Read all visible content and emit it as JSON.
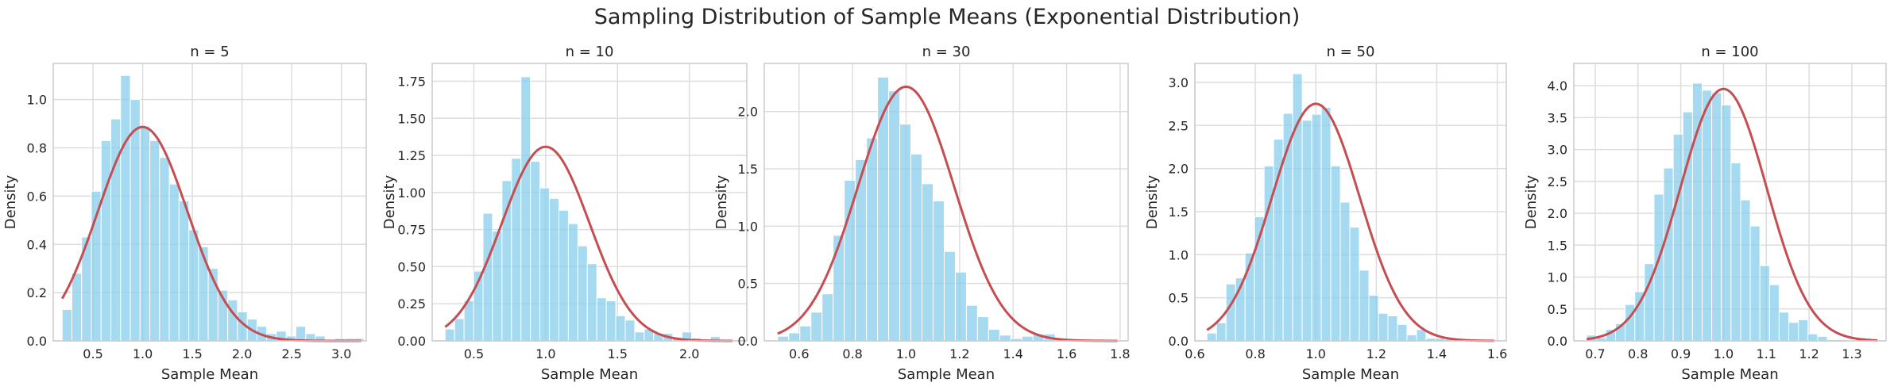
{
  "suptitle": "Sampling Distribution of Sample Means (Exponential Distribution)",
  "colors": {
    "bar": "#87CEEB",
    "curve": "#c44e52",
    "grid": "#dddddd",
    "spine": "#cccccc"
  },
  "chart_data": [
    {
      "type": "bar",
      "title": "n = 5",
      "xlabel": "Sample Mean",
      "ylabel": "Density",
      "xlim": [
        0.1,
        3.25
      ],
      "ylim": [
        0,
        1.15
      ],
      "xticks": [
        0.5,
        1.0,
        1.5,
        2.0,
        2.5,
        3.0
      ],
      "xtick_labels": [
        "0.5",
        "1.0",
        "1.5",
        "2.0",
        "2.5",
        "3.0"
      ],
      "yticks": [
        0,
        0.2,
        0.4,
        0.6,
        0.8,
        1.0
      ],
      "ytick_labels": [
        "0.0",
        "0.2",
        "0.4",
        "0.6",
        "0.8",
        "1.0"
      ],
      "bins_start": 0.19,
      "bin_width": 0.098,
      "values": [
        0.13,
        0.28,
        0.43,
        0.62,
        0.83,
        0.92,
        1.1,
        1.0,
        0.89,
        0.83,
        0.76,
        0.65,
        0.58,
        0.46,
        0.39,
        0.3,
        0.21,
        0.17,
        0.12,
        0.09,
        0.06,
        0.03,
        0.04,
        0.02,
        0.06,
        0.03,
        0.02,
        0.0,
        0.01,
        0.01,
        0.01
      ],
      "curve": {
        "mean": 1.0,
        "std": 0.45,
        "x_range": [
          0.19,
          3.2
        ]
      }
    },
    {
      "type": "bar",
      "title": "n = 10",
      "xlabel": "Sample Mean",
      "ylabel": "Density",
      "xlim": [
        0.21,
        2.4
      ],
      "ylim": [
        0,
        1.87
      ],
      "xticks": [
        0.5,
        1.0,
        1.5,
        2.0
      ],
      "xtick_labels": [
        "0.5",
        "1.0",
        "1.5",
        "2.0"
      ],
      "yticks": [
        0,
        0.25,
        0.5,
        0.75,
        1.0,
        1.25,
        1.5,
        1.75
      ],
      "ytick_labels": [
        "0.00",
        "0.25",
        "0.50",
        "0.75",
        "1.00",
        "1.25",
        "1.50",
        "1.75"
      ],
      "bins_start": 0.3,
      "bin_width": 0.066,
      "values": [
        0.08,
        0.15,
        0.27,
        0.47,
        0.86,
        0.74,
        1.08,
        1.23,
        1.78,
        1.21,
        1.03,
        0.96,
        0.88,
        0.79,
        0.64,
        0.52,
        0.29,
        0.27,
        0.17,
        0.14,
        0.06,
        0.08,
        0.05,
        0.05,
        0.02,
        0.06,
        0.02,
        0.0,
        0.03
      ],
      "curve": {
        "mean": 1.0,
        "std": 0.305,
        "x_range": [
          0.3,
          2.3
        ]
      }
    },
    {
      "type": "bar",
      "title": "n = 30",
      "xlabel": "Sample Mean",
      "ylabel": "Density",
      "xlim": [
        0.47,
        1.83
      ],
      "ylim": [
        0,
        2.42
      ],
      "xticks": [
        0.6,
        0.8,
        1.0,
        1.2,
        1.4,
        1.6,
        1.8
      ],
      "xtick_labels": [
        "0.6",
        "0.8",
        "1.0",
        "1.2",
        "1.4",
        "1.6",
        "1.8"
      ],
      "yticks": [
        0,
        0.5,
        1.0,
        1.5,
        2.0
      ],
      "ytick_labels": [
        "0.0",
        "0.5",
        "1.0",
        "1.5",
        "2.0"
      ],
      "bins_start": 0.52,
      "bin_width": 0.0415,
      "values": [
        0.04,
        0.07,
        0.13,
        0.25,
        0.41,
        0.92,
        1.4,
        1.58,
        1.77,
        2.3,
        2.18,
        1.89,
        1.63,
        1.37,
        1.22,
        0.78,
        0.6,
        0.31,
        0.21,
        0.1,
        0.05,
        0.02,
        0.04,
        0.06,
        0.06,
        0.01,
        0.01,
        0.01,
        0.01,
        0.0,
        0.01
      ],
      "curve": {
        "mean": 1.0,
        "std": 0.18,
        "x_range": [
          0.52,
          1.79
        ]
      }
    },
    {
      "type": "bar",
      "title": "n = 50",
      "xlabel": "Sample Mean",
      "ylabel": "Density",
      "xlim": [
        0.6,
        1.63
      ],
      "ylim": [
        0,
        3.22
      ],
      "xticks": [
        0.6,
        0.8,
        1.0,
        1.2,
        1.4,
        1.6
      ],
      "xtick_labels": [
        "0.6",
        "0.8",
        "1.0",
        "1.2",
        "1.4",
        "1.6"
      ],
      "yticks": [
        0,
        0.5,
        1.0,
        1.5,
        2.0,
        2.5,
        3.0
      ],
      "ytick_labels": [
        "0.0",
        "0.5",
        "1.0",
        "1.5",
        "2.0",
        "2.5",
        "3.0"
      ],
      "bins_start": 0.64,
      "bin_width": 0.0315,
      "values": [
        0.09,
        0.21,
        0.66,
        0.73,
        1.02,
        1.44,
        2.03,
        2.34,
        2.64,
        3.1,
        2.56,
        2.63,
        2.71,
        2.03,
        1.61,
        1.32,
        0.82,
        0.53,
        0.32,
        0.29,
        0.19,
        0.07,
        0.13,
        0.03,
        0.03,
        0.02,
        0.0,
        0.0,
        0.0,
        0.01
      ],
      "curve": {
        "mean": 1.0,
        "std": 0.145,
        "x_range": [
          0.64,
          1.59
        ]
      }
    },
    {
      "type": "bar",
      "title": "n = 100",
      "xlabel": "Sample Mean",
      "ylabel": "Density",
      "xlim": [
        0.65,
        1.38
      ],
      "ylim": [
        0,
        4.35
      ],
      "xticks": [
        0.7,
        0.8,
        0.9,
        1.0,
        1.1,
        1.2,
        1.3
      ],
      "xtick_labels": [
        "0.7",
        "0.8",
        "0.9",
        "1.0",
        "1.1",
        "1.2",
        "1.3"
      ],
      "yticks": [
        0,
        0.5,
        1.0,
        1.5,
        2.0,
        2.5,
        3.0,
        3.5,
        4.0
      ],
      "ytick_labels": [
        "0.0",
        "0.5",
        "1.0",
        "1.5",
        "2.0",
        "2.5",
        "3.0",
        "3.5",
        "4.0"
      ],
      "bins_start": 0.68,
      "bin_width": 0.0225,
      "values": [
        0.09,
        0.05,
        0.18,
        0.27,
        0.57,
        0.77,
        1.21,
        2.3,
        2.71,
        3.24,
        3.59,
        4.04,
        3.93,
        3.89,
        3.7,
        2.79,
        2.21,
        1.8,
        1.18,
        0.88,
        0.45,
        0.29,
        0.33,
        0.11,
        0.07,
        0.02,
        0.02,
        0.01,
        0.05,
        0.02
      ],
      "curve": {
        "mean": 1.0,
        "std": 0.101,
        "x_range": [
          0.68,
          1.36
        ]
      }
    }
  ]
}
